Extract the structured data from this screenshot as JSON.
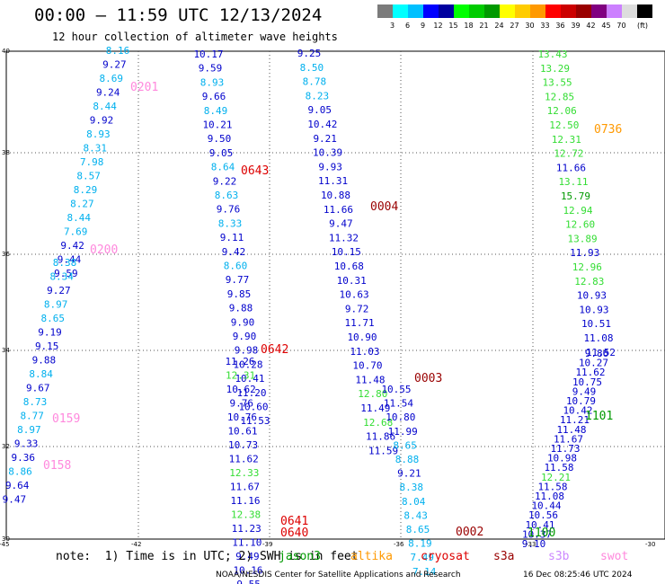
{
  "title": "00:00 – 11:59 UTC 12/13/2024",
  "subtitle": "12 hour collection of altimeter wave heights",
  "colorbar": {
    "colors": [
      "#7b7b7b",
      "#00ffff",
      "#00c0ff",
      "#0000ff",
      "#0000a0",
      "#00ff00",
      "#00cc00",
      "#009900",
      "#ffff00",
      "#ffcc00",
      "#ff9900",
      "#ff0000",
      "#cc0000",
      "#990000",
      "#800080",
      "#cc80ff",
      "#dddddd",
      "#000000"
    ],
    "labels": [
      "3",
      "6",
      "9",
      "12",
      "15",
      "18",
      "21",
      "24",
      "27",
      "30",
      "33",
      "36",
      "39",
      "42",
      "45",
      "70"
    ],
    "unit": "(ft)"
  },
  "axes": {
    "lat_labels": [
      "40",
      "38",
      "36",
      "34",
      "32",
      "30"
    ],
    "lon_labels": [
      "-45",
      "-42",
      "-39",
      "-36",
      "-33",
      "-30"
    ]
  },
  "tracks": [
    {
      "id": "0201",
      "id_color": "#ff88dd",
      "values": [
        "8.16",
        "9.27",
        "8.69",
        "9.24",
        "8.44",
        "9.92",
        "8.93",
        "8.31",
        "7.98",
        "8.57",
        "8.29",
        "8.27",
        "8.44",
        "7.69",
        "9.42",
        "9.44",
        "9.59"
      ]
    },
    {
      "id": "0200",
      "id_color": "#ff88dd",
      "values": [
        "8.38",
        "8.34",
        "9.27",
        "8.97",
        "8.65",
        "9.19",
        "9.15",
        "9.88",
        "8.84",
        "9.67",
        "8.73",
        "8.77",
        "8.97",
        "9.33",
        "9.36",
        "8.86",
        "9.64",
        "9.47"
      ]
    },
    {
      "id": "0159",
      "id_color": "#ff88dd",
      "values": []
    },
    {
      "id": "0158",
      "id_color": "#ff88dd",
      "values": []
    },
    {
      "id": "0643",
      "id_color": "#dd0000",
      "values": [
        "10.17",
        "9.59",
        "8.93",
        "9.66",
        "8.49",
        "10.21",
        "9.50",
        "9.05",
        "8.64",
        "9.22",
        "8.63",
        "9.76",
        "8.33",
        "9.11",
        "9.42",
        "8.60",
        "9.77",
        "9.85",
        "9.88",
        "9.90",
        "9.90",
        "9.98",
        "10.28",
        "10.41",
        "11.20",
        "10.60",
        "11.53"
      ]
    },
    {
      "id": "0642",
      "id_color": "#dd0000",
      "values": [
        "11.26",
        "12.31",
        "10.62",
        "9.76",
        "10.76",
        "10.61",
        "10.73",
        "11.62",
        "12.33",
        "11.67",
        "11.16",
        "12.38",
        "11.23",
        "11.10",
        "9.49",
        "10.16",
        "9.55"
      ]
    },
    {
      "id": "0641",
      "id_color": "#dd0000",
      "values": []
    },
    {
      "id": "0640",
      "id_color": "#dd0000",
      "values": []
    },
    {
      "id": "0004",
      "id_color": "#990000",
      "values": [
        "9.25",
        "8.50",
        "8.78",
        "8.23",
        "9.05",
        "10.42",
        "9.21",
        "10.39",
        "9.93",
        "11.31",
        "10.88",
        "11.66",
        "9.47",
        "11.32",
        "10.15",
        "10.68",
        "10.31",
        "10.63",
        "9.72",
        "11.71",
        "10.90",
        "11.03",
        "10.70",
        "11.48",
        "12.80",
        "11.49",
        "12.68",
        "11.86",
        "11.59"
      ]
    },
    {
      "id": "0003",
      "id_color": "#990000",
      "values": [
        "10.55",
        "11.54",
        "10.80",
        "11.99",
        "8.65",
        "8.88",
        "9.21",
        "8.38",
        "8.04",
        "8.43",
        "8.65",
        "8.19",
        "7.49",
        "7.14"
      ]
    },
    {
      "id": "0002",
      "id_color": "#990000",
      "values": []
    },
    {
      "id": "0736",
      "id_color": "#ff9900",
      "values": [
        "13.43",
        "13.29",
        "13.55",
        "12.85",
        "12.06",
        "12.50",
        "12.31",
        "12.72",
        "11.66",
        "13.11",
        "15.79",
        "12.94",
        "12.60",
        "13.89",
        "11.93",
        "12.96",
        "12.83",
        "10.93",
        "10.93",
        "10.51",
        "11.08",
        "11.52"
      ]
    },
    {
      "id": "1101",
      "id_color": "#009900",
      "values": [
        "9.86",
        "10.27",
        "11.62",
        "10.75",
        "9.49",
        "10.79",
        "10.42",
        "11.21",
        "11.48",
        "11.67",
        "11.73",
        "10.98",
        "11.58",
        "12.21",
        "11.58",
        "11.08",
        "10.44",
        "10.56",
        "10.41",
        "10.37",
        "9.10"
      ]
    },
    {
      "id": "1100",
      "id_color": "#009900",
      "values": []
    }
  ],
  "footer": {
    "note": "note:  1) Time is in UTC; 2) SWH is in feet",
    "legend": [
      {
        "name": "jason3",
        "color": "#009900"
      },
      {
        "name": "altika",
        "color": "#ff9900"
      },
      {
        "name": "cryosat",
        "color": "#dd0000"
      },
      {
        "name": "s3a",
        "color": "#990000"
      },
      {
        "name": "s3b",
        "color": "#cc88ff"
      },
      {
        "name": "swot",
        "color": "#ff88dd"
      }
    ],
    "credit": "NOAA/NESDIS Center for Satellite Applications and Research",
    "issued": "16 Dec 08:25:46 UTC 2024"
  }
}
